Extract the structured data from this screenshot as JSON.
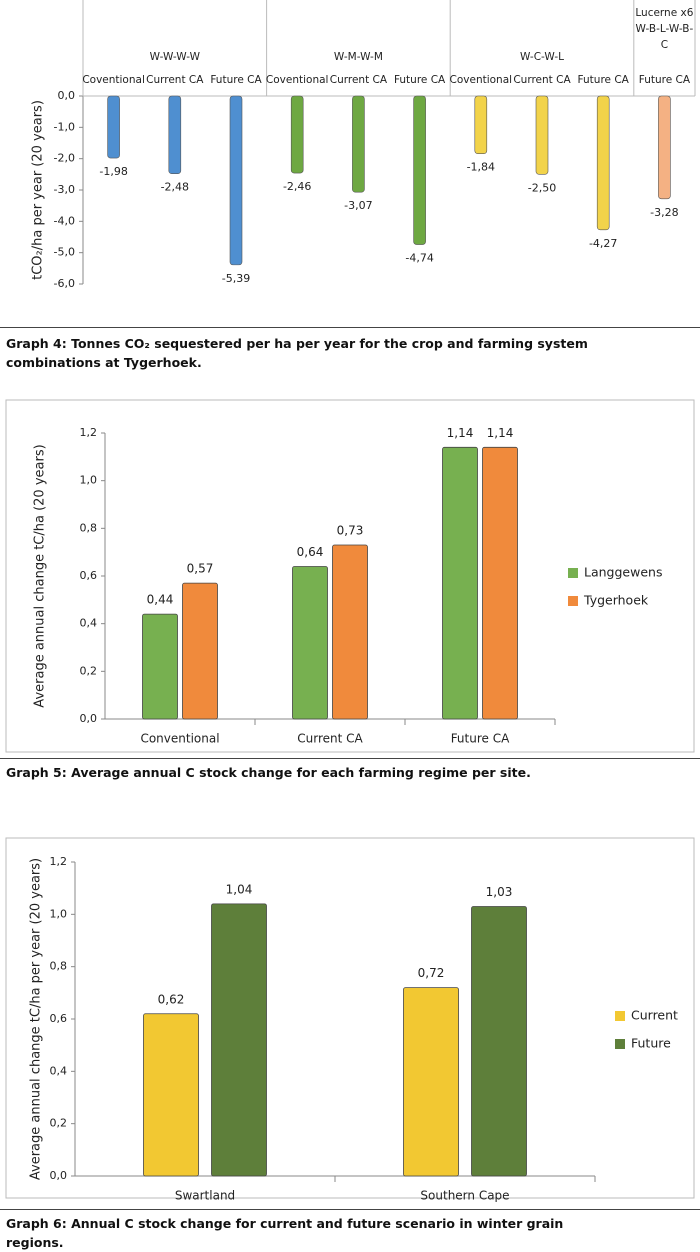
{
  "chart_data": [
    {
      "type": "grouped-bar",
      "caption": "Graph 4: Tonnes CO₂ sequestered per ha per year for the crop and farming system combinations at Tygerhoek.",
      "y_label": "tCO₂/ha per year (20 years)",
      "ylim": [
        -6,
        0
      ],
      "yticks": [
        {
          "value": 0,
          "label": "0,0"
        },
        {
          "value": -1,
          "label": "-1,0"
        },
        {
          "value": -2,
          "label": "-2,0"
        },
        {
          "value": -3,
          "label": "-3,0"
        },
        {
          "value": -4,
          "label": "-4,0"
        },
        {
          "value": -5,
          "label": "-5,0"
        },
        {
          "value": -6,
          "label": "-6,0"
        }
      ],
      "groups": [
        {
          "name": [
            "W-W-W-W"
          ],
          "color": "#4f8fd0",
          "categories": [
            "Coventional",
            "Current CA",
            "Future CA"
          ],
          "values": [
            -1.98,
            -2.48,
            -5.39
          ],
          "value_labels": [
            "-1,98",
            "-2,48",
            "-5,39"
          ]
        },
        {
          "name": [
            "W-M-W-M"
          ],
          "color": "#6ea842",
          "categories": [
            "Coventional",
            "Current CA",
            "Future CA"
          ],
          "values": [
            -2.46,
            -3.07,
            -4.74
          ],
          "value_labels": [
            "-2,46",
            "-3,07",
            "-4,74"
          ]
        },
        {
          "name": [
            "W-C-W-L"
          ],
          "color": "#f2d34a",
          "categories": [
            "Coventional",
            "Current CA",
            "Future CA"
          ],
          "values": [
            -1.84,
            -2.5,
            -4.27
          ],
          "value_labels": [
            "-1,84",
            "-2,50",
            "-4,27"
          ]
        },
        {
          "name": [
            "Lucerne x6",
            "W-B-L-W-B-",
            "C"
          ],
          "color": "#f4b183",
          "categories": [
            "Future CA"
          ],
          "values": [
            -3.28
          ],
          "value_labels": [
            "-3,28"
          ]
        }
      ]
    },
    {
      "type": "bar",
      "caption": "Graph 5: Average annual C stock change for each farming regime per site.",
      "y_label": "Average annual change tC/ha (20 years)",
      "categories": [
        "Conventional",
        "Current CA",
        "Future CA"
      ],
      "series": [
        {
          "name": "Langgewens",
          "color": "#77b050",
          "values": [
            0.44,
            0.64,
            1.14
          ],
          "value_labels": [
            "0,44",
            "0,64",
            "1,14"
          ]
        },
        {
          "name": "Tygerhoek",
          "color": "#f08a3c",
          "values": [
            0.57,
            0.73,
            1.14
          ],
          "value_labels": [
            "0,57",
            "0,73",
            "1,14"
          ]
        }
      ],
      "ylim": [
        0,
        1.2
      ],
      "yticks": [
        {
          "value": 0,
          "label": "0,0"
        },
        {
          "value": 0.2,
          "label": "0,2"
        },
        {
          "value": 0.4,
          "label": "0,4"
        },
        {
          "value": 0.6,
          "label": "0,6"
        },
        {
          "value": 0.8,
          "label": "0,8"
        },
        {
          "value": 1.0,
          "label": "1,0"
        },
        {
          "value": 1.2,
          "label": "1,2"
        }
      ],
      "legend": "right"
    },
    {
      "type": "bar",
      "caption": "Graph 6: Annual C stock change for current and future scenario in winter grain regions.",
      "y_label": "Average annual change tC/ha per year (20 years)",
      "categories": [
        "Swartland",
        "Southern Cape"
      ],
      "series": [
        {
          "name": "Current",
          "color": "#f2c832",
          "values": [
            0.62,
            0.72
          ],
          "value_labels": [
            "0,62",
            "0,72"
          ]
        },
        {
          "name": "Future",
          "color": "#5e7f3a",
          "values": [
            1.04,
            1.03
          ],
          "value_labels": [
            "1,04",
            "1,03"
          ]
        }
      ],
      "ylim": [
        0,
        1.2
      ],
      "yticks": [
        {
          "value": 0,
          "label": "0,0"
        },
        {
          "value": 0.2,
          "label": "0,2"
        },
        {
          "value": 0.4,
          "label": "0,4"
        },
        {
          "value": 0.6,
          "label": "0,6"
        },
        {
          "value": 0.8,
          "label": "0,8"
        },
        {
          "value": 1.0,
          "label": "1,0"
        },
        {
          "value": 1.2,
          "label": "1,2"
        }
      ],
      "legend": "right"
    }
  ]
}
